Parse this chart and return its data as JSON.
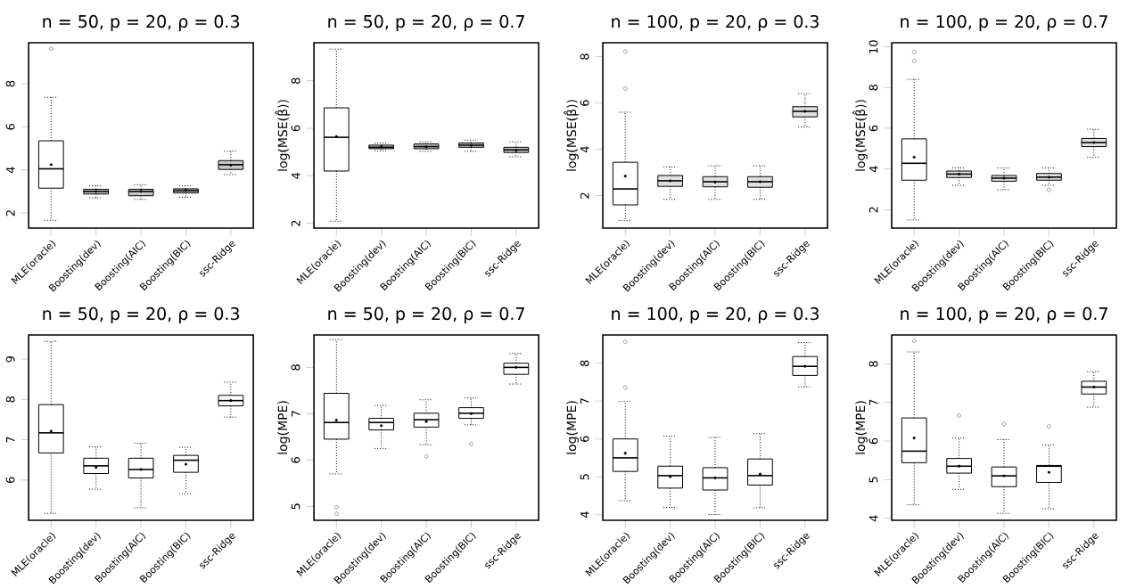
{
  "chart_data": [
    {
      "type": "box",
      "title": "n = 50, p = 20, ρ = 0.3",
      "categories": [
        "MLE(oracle)",
        "Boosting(dev)",
        "Boosting(AIC)",
        "Boosting(BIC)",
        "ssc-Ridge"
      ],
      "colors": [
        "#ffffff",
        "#c8c8c8",
        "#c8c8c8",
        "#c8c8c8",
        "#c8c8c8"
      ],
      "ylim": [
        1.3,
        9.9
      ],
      "yticks": [
        2,
        4,
        6,
        8
      ],
      "boxes": [
        {
          "low": 1.66,
          "q1": 3.15,
          "median": 4.05,
          "q3": 5.35,
          "high": 7.37,
          "mean": 4.24,
          "outliers": [
            9.63
          ]
        },
        {
          "low": 2.7,
          "q1": 2.88,
          "median": 3.0,
          "q3": 3.1,
          "high": 3.26,
          "mean": 3.0
        },
        {
          "low": 2.63,
          "q1": 2.8,
          "median": 3.0,
          "q3": 3.1,
          "high": 3.31,
          "mean": 3.0
        },
        {
          "low": 2.73,
          "q1": 2.93,
          "median": 3.03,
          "q3": 3.12,
          "high": 3.26,
          "mean": 3.05
        },
        {
          "low": 3.78,
          "q1": 4.02,
          "median": 4.24,
          "q3": 4.43,
          "high": 4.87,
          "mean": 4.22
        }
      ]
    },
    {
      "type": "box",
      "title": "n = 50, p = 20, ρ = 0.7",
      "ylabel": "log(MSE(β̂))",
      "categories": [
        "MLE(oracle)",
        "Boosting(dev)",
        "Boosting(AIC)",
        "Boosting(BIC)",
        "ssc-Ridge"
      ],
      "colors": [
        "#ffffff",
        "#c8c8c8",
        "#c8c8c8",
        "#c8c8c8",
        "#c8c8c8"
      ],
      "ylim": [
        1.8,
        9.6
      ],
      "yticks": [
        2,
        4,
        6,
        8
      ],
      "boxes": [
        {
          "low": 2.09,
          "q1": 4.2,
          "median": 5.62,
          "q3": 6.86,
          "high": 9.33,
          "mean": 5.65
        },
        {
          "low": 5.05,
          "q1": 5.14,
          "median": 5.2,
          "q3": 5.29,
          "high": 5.38,
          "mean": 5.22
        },
        {
          "low": 5.03,
          "q1": 5.14,
          "median": 5.23,
          "q3": 5.34,
          "high": 5.43,
          "mean": 5.22
        },
        {
          "low": 5.03,
          "q1": 5.2,
          "median": 5.29,
          "q3": 5.38,
          "high": 5.5,
          "mean": 5.28
        },
        {
          "low": 4.8,
          "q1": 4.98,
          "median": 5.09,
          "q3": 5.2,
          "high": 5.43,
          "mean": 5.07
        }
      ]
    },
    {
      "type": "box",
      "title": "n = 100, p = 20, ρ = 0.3",
      "ylabel": "log(MSE(β̂))",
      "categories": [
        "MLE(oracle)",
        "Boosting(dev)",
        "Boosting(AIC)",
        "Boosting(BIC)",
        "ssc-Ridge"
      ],
      "colors": [
        "#ffffff",
        "#e0e0e0",
        "#e0e0e0",
        "#e0e0e0",
        "#e0e0e0"
      ],
      "ylim": [
        0.6,
        8.6
      ],
      "yticks": [
        2,
        4,
        6,
        8
      ],
      "boxes": [
        {
          "low": 0.93,
          "q1": 1.6,
          "median": 2.29,
          "q3": 3.44,
          "high": 5.6,
          "mean": 2.84,
          "outliers": [
            6.62,
            8.22
          ]
        },
        {
          "low": 1.84,
          "q1": 2.4,
          "median": 2.64,
          "q3": 2.87,
          "high": 3.24,
          "mean": 2.64
        },
        {
          "low": 1.84,
          "q1": 2.38,
          "median": 2.6,
          "q3": 2.82,
          "high": 3.29,
          "mean": 2.58
        },
        {
          "low": 1.84,
          "q1": 2.36,
          "median": 2.6,
          "q3": 2.82,
          "high": 3.29,
          "mean": 2.6
        },
        {
          "low": 4.96,
          "q1": 5.4,
          "median": 5.64,
          "q3": 5.84,
          "high": 6.4,
          "mean": 5.64
        }
      ]
    },
    {
      "type": "box",
      "title": "n = 100, p = 20, ρ = 0.7",
      "ylabel": "log(MSE(β̂))",
      "categories": [
        "MLE(oracle)",
        "Boosting(dev)",
        "Boosting(AIC)",
        "Boosting(BIC)",
        "ssc-Ridge"
      ],
      "colors": [
        "#ffffff",
        "#e0e0e0",
        "#e0e0e0",
        "#e0e0e0",
        "#e0e0e0"
      ],
      "ylim": [
        1.1,
        10.2
      ],
      "yticks": [
        2,
        4,
        6,
        8,
        10
      ],
      "boxes": [
        {
          "low": 1.5,
          "q1": 3.45,
          "median": 4.28,
          "q3": 5.48,
          "high": 8.4,
          "mean": 4.58,
          "outliers": [
            9.3,
            9.75
          ]
        },
        {
          "low": 3.2,
          "q1": 3.58,
          "median": 3.75,
          "q3": 3.9,
          "high": 4.05,
          "mean": 3.75
        },
        {
          "low": 2.98,
          "q1": 3.4,
          "median": 3.55,
          "q3": 3.68,
          "high": 4.05,
          "mean": 3.55
        },
        {
          "low": 3.2,
          "q1": 3.45,
          "median": 3.6,
          "q3": 3.78,
          "high": 4.05,
          "mean": 3.6,
          "outliers": [
            2.98
          ]
        },
        {
          "low": 4.58,
          "q1": 5.1,
          "median": 5.3,
          "q3": 5.5,
          "high": 5.95,
          "mean": 5.3
        }
      ]
    },
    {
      "type": "box",
      "title": "n = 50, p = 20, ρ = 0.3",
      "categories": [
        "MLE(oracle)",
        "Boosting(dev)",
        "Boosting(AIC)",
        "Boosting(BIC)",
        "ssc-Ridge"
      ],
      "colors": [
        "#ffffff",
        "#ffffff",
        "#ffffff",
        "#ffffff",
        "#ffffff"
      ],
      "ylim": [
        5.0,
        9.6
      ],
      "yticks": [
        6,
        7,
        8,
        9
      ],
      "boxes": [
        {
          "low": 5.17,
          "q1": 6.67,
          "median": 7.17,
          "q3": 7.87,
          "high": 9.44,
          "mean": 7.21
        },
        {
          "low": 5.77,
          "q1": 6.16,
          "median": 6.35,
          "q3": 6.54,
          "high": 6.82,
          "mean": 6.31
        },
        {
          "low": 5.31,
          "q1": 6.05,
          "median": 6.26,
          "q3": 6.54,
          "high": 6.91,
          "mean": 6.26
        },
        {
          "low": 5.66,
          "q1": 6.19,
          "median": 6.49,
          "q3": 6.61,
          "high": 6.81,
          "mean": 6.39
        },
        {
          "low": 7.56,
          "q1": 7.84,
          "median": 7.97,
          "q3": 8.1,
          "high": 8.43,
          "mean": 7.97
        }
      ]
    },
    {
      "type": "box",
      "title": "n = 50, p = 20, ρ = 0.7",
      "ylabel": "log(MPE)",
      "categories": [
        "MLE(oracle)",
        "Boosting(dev)",
        "Boosting(AIC)",
        "Boosting(BIC)",
        "ssc-Ridge"
      ],
      "colors": [
        "#ffffff",
        "#ffffff",
        "#ffffff",
        "#ffffff",
        "#ffffff"
      ],
      "ylim": [
        4.7,
        8.7
      ],
      "yticks": [
        5,
        6,
        7,
        8
      ],
      "boxes": [
        {
          "low": 5.7,
          "q1": 6.45,
          "median": 6.81,
          "q3": 7.44,
          "high": 8.6,
          "mean": 6.86,
          "outliers": [
            4.84,
            4.98
          ]
        },
        {
          "low": 6.25,
          "q1": 6.65,
          "median": 6.81,
          "q3": 6.9,
          "high": 7.18,
          "mean": 6.74
        },
        {
          "low": 6.33,
          "q1": 6.71,
          "median": 6.87,
          "q3": 7.01,
          "high": 7.3,
          "mean": 6.83,
          "outliers": [
            6.08
          ]
        },
        {
          "low": 6.76,
          "q1": 6.9,
          "median": 7.01,
          "q3": 7.13,
          "high": 7.34,
          "mean": 7.0,
          "outliers": [
            6.35
          ]
        },
        {
          "low": 7.64,
          "q1": 7.85,
          "median": 8.0,
          "q3": 8.09,
          "high": 8.3,
          "mean": 8.0
        }
      ]
    },
    {
      "type": "box",
      "title": "n = 100, p = 20, ρ = 0.3",
      "ylabel": "log(MPE)",
      "categories": [
        "MLE(oracle)",
        "Boosting(dev)",
        "Boosting(AIC)",
        "Boosting(BIC)",
        "ssc-Ridge"
      ],
      "colors": [
        "#ffffff",
        "#ffffff",
        "#ffffff",
        "#ffffff",
        "#ffffff"
      ],
      "ylim": [
        3.85,
        8.75
      ],
      "yticks": [
        4,
        5,
        6,
        7,
        8
      ],
      "boxes": [
        {
          "low": 4.37,
          "q1": 5.14,
          "median": 5.5,
          "q3": 6.0,
          "high": 6.99,
          "mean": 5.62,
          "outliers": [
            7.36,
            8.57
          ]
        },
        {
          "low": 4.19,
          "q1": 4.7,
          "median": 5.03,
          "q3": 5.28,
          "high": 6.07,
          "mean": 5.0
        },
        {
          "low": 4.0,
          "q1": 4.65,
          "median": 4.97,
          "q3": 5.24,
          "high": 6.04,
          "mean": 4.97
        },
        {
          "low": 4.18,
          "q1": 4.78,
          "median": 5.03,
          "q3": 5.47,
          "high": 6.14,
          "mean": 5.07
        },
        {
          "low": 7.38,
          "q1": 7.68,
          "median": 7.92,
          "q3": 8.18,
          "high": 8.55,
          "mean": 7.92
        }
      ]
    },
    {
      "type": "box",
      "title": "n = 100, p = 20, ρ = 0.7",
      "ylabel": "log(MPE)",
      "categories": [
        "MLE(oracle)",
        "Boosting(dev)",
        "Boosting(AIC)",
        "Boosting(BIC)",
        "ssc-Ridge"
      ],
      "colors": [
        "#ffffff",
        "#ffffff",
        "#ffffff",
        "#ffffff",
        "#ffffff"
      ],
      "ylim": [
        3.95,
        8.75
      ],
      "yticks": [
        4,
        5,
        6,
        7,
        8
      ],
      "boxes": [
        {
          "low": 4.35,
          "q1": 5.44,
          "median": 5.74,
          "q3": 6.6,
          "high": 8.31,
          "mean": 6.08,
          "outliers": [
            8.6
          ]
        },
        {
          "low": 4.75,
          "q1": 5.17,
          "median": 5.35,
          "q3": 5.55,
          "high": 6.08,
          "mean": 5.35,
          "outliers": [
            6.66
          ]
        },
        {
          "low": 4.13,
          "q1": 4.82,
          "median": 5.1,
          "q3": 5.33,
          "high": 6.04,
          "mean": 5.1,
          "outliers": [
            6.44
          ]
        },
        {
          "low": 4.25,
          "q1": 4.93,
          "median": 5.35,
          "q3": 5.37,
          "high": 5.9,
          "mean": 5.19,
          "outliers": [
            6.38
          ]
        },
        {
          "low": 6.88,
          "q1": 7.22,
          "median": 7.4,
          "q3": 7.55,
          "high": 7.8,
          "mean": 7.4
        }
      ]
    }
  ]
}
